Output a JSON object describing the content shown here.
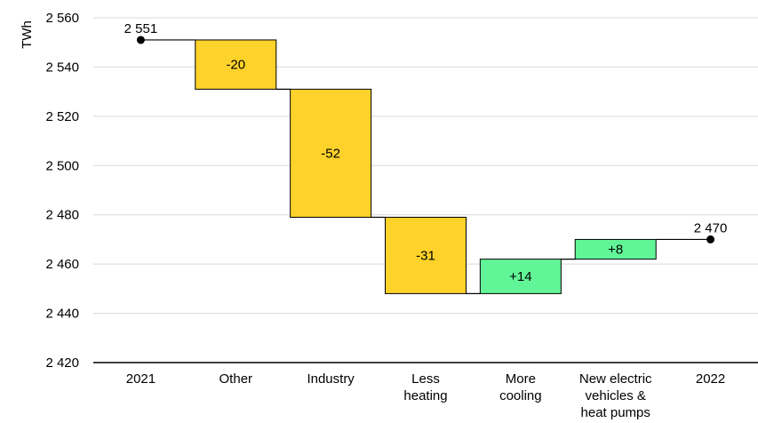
{
  "chart_data": {
    "type": "waterfall",
    "title": "",
    "ylabel": "TWh",
    "xlabel": "",
    "ylim": [
      2420,
      2560
    ],
    "yticks": [
      2420,
      2440,
      2460,
      2480,
      2500,
      2520,
      2540,
      2560
    ],
    "ytick_labels": [
      "2 420",
      "2 440",
      "2 460",
      "2 480",
      "2 500",
      "2 520",
      "2 540",
      "2 560"
    ],
    "grid": true,
    "categories": [
      {
        "label": [
          "2021"
        ],
        "kind": "total",
        "value": 2551,
        "value_label": "2 551"
      },
      {
        "label": [
          "Other"
        ],
        "kind": "delta",
        "value": -20,
        "value_label": "-20"
      },
      {
        "label": [
          "Industry"
        ],
        "kind": "delta",
        "value": -52,
        "value_label": "-52"
      },
      {
        "label": [
          "Less",
          "heating"
        ],
        "kind": "delta",
        "value": -31,
        "value_label": "-31"
      },
      {
        "label": [
          "More",
          "cooling"
        ],
        "kind": "delta",
        "value": 14,
        "value_label": "+14"
      },
      {
        "label": [
          "New electric",
          "vehicles &",
          "heat pumps"
        ],
        "kind": "delta",
        "value": 8,
        "value_label": "+8"
      },
      {
        "label": [
          "2022"
        ],
        "kind": "total",
        "value": 2470,
        "value_label": "2 470"
      }
    ],
    "colors": {
      "decrease": "#fdd22a",
      "increase": "#62f598",
      "outline": "#000000",
      "grid": "#d9d9d9"
    }
  }
}
